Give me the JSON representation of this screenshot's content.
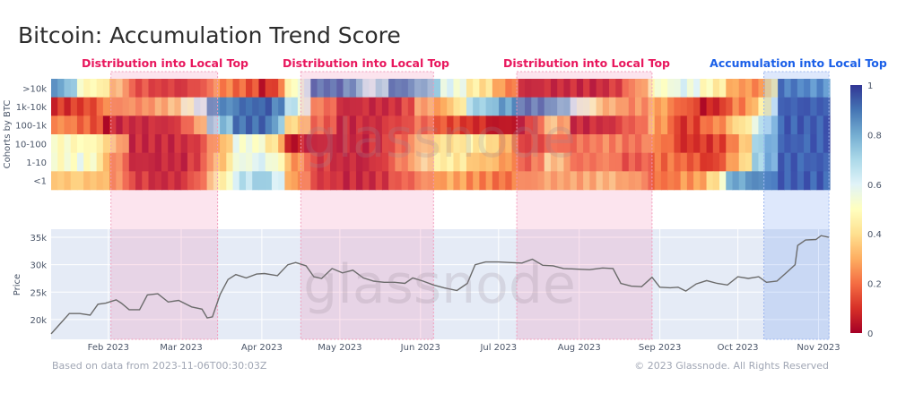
{
  "title": "Bitcoin: Accumulation Trend Score",
  "watermark": "glassnode",
  "footer_left": "Based on data from 2023-11-06T00:30:03Z",
  "footer_right": "© 2023 Glassnode. All Rights Reserved",
  "colors": {
    "distribution": "#e8175d",
    "accumulation": "#1a5fe8",
    "price_line": "#6b6b6b"
  },
  "chart_data": [
    {
      "type": "heatmap",
      "title": "Accumulation Trend Score",
      "ylabel": "Cohorts by BTC",
      "rows": [
        ">10k",
        "1k-10k",
        "100-1k",
        "10-100",
        "1-10",
        "<1"
      ],
      "x_start": "2023-01-10",
      "x_end": "2023-11-05",
      "colorbar": {
        "min": 0,
        "max": 1,
        "ticks": [
          "0",
          "0.2",
          "0.4",
          "0.6",
          "0.8",
          "1"
        ],
        "colorscale": "RdYlBu"
      },
      "values": [
        [
          0.85,
          0.5,
          0.4,
          0.15,
          0.1,
          0.1,
          0.25,
          0.2,
          0.05,
          0.45,
          0.9,
          0.9,
          0.6,
          0.9,
          0.8,
          0.6,
          0.45,
          0.3,
          0.05,
          0.05,
          0.05,
          0.05,
          0.2,
          0.5,
          0.6,
          0.5,
          0.3,
          0.2,
          0.9,
          0.85
        ],
        [
          0.1,
          0.12,
          0.25,
          0.25,
          0.3,
          0.5,
          0.85,
          0.9,
          0.95,
          0.7,
          0.25,
          0.05,
          0.05,
          0.05,
          0.3,
          0.3,
          0.7,
          0.8,
          0.9,
          0.85,
          0.6,
          0.35,
          0.25,
          0.3,
          0.2,
          0.05,
          0.2,
          0.35,
          0.95,
          0.95
        ],
        [
          0.25,
          0.2,
          0.05,
          0.05,
          0.05,
          0.15,
          0.7,
          0.9,
          0.95,
          0.4,
          0.2,
          0.05,
          0.05,
          0.1,
          0.2,
          0.15,
          0.1,
          0.05,
          0.05,
          0.4,
          0.05,
          0.05,
          0.15,
          0.3,
          0.1,
          0.2,
          0.35,
          0.6,
          0.95,
          0.95
        ],
        [
          0.5,
          0.5,
          0.4,
          0.05,
          0.05,
          0.05,
          0.25,
          0.55,
          0.5,
          0.05,
          0.05,
          0.05,
          0.05,
          0.15,
          0.35,
          0.4,
          0.45,
          0.35,
          0.1,
          0.2,
          0.2,
          0.25,
          0.2,
          0.25,
          0.1,
          0.1,
          0.2,
          0.7,
          0.95,
          0.95
        ],
        [
          0.5,
          0.55,
          0.3,
          0.05,
          0.05,
          0.05,
          0.3,
          0.55,
          0.6,
          0.3,
          0.1,
          0.05,
          0.05,
          0.2,
          0.4,
          0.45,
          0.35,
          0.3,
          0.15,
          0.4,
          0.2,
          0.25,
          0.15,
          0.2,
          0.2,
          0.1,
          0.25,
          0.7,
          0.95,
          0.95
        ],
        [
          0.35,
          0.35,
          0.3,
          0.1,
          0.05,
          0.1,
          0.4,
          0.65,
          0.75,
          0.3,
          0.1,
          0.05,
          0.05,
          0.15,
          0.25,
          0.3,
          0.25,
          0.2,
          0.25,
          0.3,
          0.3,
          0.35,
          0.3,
          0.2,
          0.25,
          0.3,
          0.8,
          0.85,
          0.95,
          0.95
        ]
      ]
    },
    {
      "type": "line",
      "ylabel": "Price",
      "ylim": [
        16400,
        36470
      ],
      "yticks": [
        {
          "v": 20000,
          "label": "20k"
        },
        {
          "v": 25000,
          "label": "25k"
        },
        {
          "v": 30000,
          "label": "30k"
        },
        {
          "v": 35000,
          "label": "35k"
        }
      ],
      "xticks": [
        {
          "date": "2023-02-01",
          "label": "Feb 2023"
        },
        {
          "date": "2023-03-01",
          "label": "Mar 2023"
        },
        {
          "date": "2023-04-01",
          "label": "Apr 2023"
        },
        {
          "date": "2023-05-01",
          "label": "May 2023"
        },
        {
          "date": "2023-06-01",
          "label": "Jun 2023"
        },
        {
          "date": "2023-07-01",
          "label": "Jul 2023"
        },
        {
          "date": "2023-08-01",
          "label": "Aug 2023"
        },
        {
          "date": "2023-09-01",
          "label": "Sep 2023"
        },
        {
          "date": "2023-10-01",
          "label": "Oct 2023"
        },
        {
          "date": "2023-11-01",
          "label": "Nov 2023"
        }
      ],
      "series": [
        {
          "name": "Price",
          "points": [
            [
              "2023-01-10",
              17400
            ],
            [
              "2023-01-13",
              19000
            ],
            [
              "2023-01-17",
              21100
            ],
            [
              "2023-01-21",
              21100
            ],
            [
              "2023-01-25",
              20800
            ],
            [
              "2023-01-28",
              22800
            ],
            [
              "2023-01-31",
              23000
            ],
            [
              "2023-02-04",
              23600
            ],
            [
              "2023-02-06",
              23000
            ],
            [
              "2023-02-09",
              21800
            ],
            [
              "2023-02-13",
              21800
            ],
            [
              "2023-02-16",
              24500
            ],
            [
              "2023-02-20",
              24700
            ],
            [
              "2023-02-24",
              23200
            ],
            [
              "2023-02-28",
              23500
            ],
            [
              "2023-03-05",
              22300
            ],
            [
              "2023-03-09",
              21900
            ],
            [
              "2023-03-11",
              20300
            ],
            [
              "2023-03-13",
              20500
            ],
            [
              "2023-03-16",
              24600
            ],
            [
              "2023-03-19",
              27300
            ],
            [
              "2023-03-22",
              28200
            ],
            [
              "2023-03-26",
              27600
            ],
            [
              "2023-03-30",
              28300
            ],
            [
              "2023-04-02",
              28400
            ],
            [
              "2023-04-07",
              28000
            ],
            [
              "2023-04-11",
              30000
            ],
            [
              "2023-04-14",
              30400
            ],
            [
              "2023-04-18",
              29800
            ],
            [
              "2023-04-21",
              27800
            ],
            [
              "2023-04-24",
              27500
            ],
            [
              "2023-04-28",
              29300
            ],
            [
              "2023-05-02",
              28500
            ],
            [
              "2023-05-06",
              29000
            ],
            [
              "2023-05-10",
              27600
            ],
            [
              "2023-05-14",
              27000
            ],
            [
              "2023-05-18",
              26800
            ],
            [
              "2023-05-22",
              26800
            ],
            [
              "2023-05-26",
              26600
            ],
            [
              "2023-05-29",
              27600
            ],
            [
              "2023-06-02",
              27000
            ],
            [
              "2023-06-06",
              26300
            ],
            [
              "2023-06-10",
              25800
            ],
            [
              "2023-06-15",
              25300
            ],
            [
              "2023-06-19",
              26600
            ],
            [
              "2023-06-22",
              30000
            ],
            [
              "2023-06-26",
              30500
            ],
            [
              "2023-07-01",
              30500
            ],
            [
              "2023-07-05",
              30400
            ],
            [
              "2023-07-10",
              30300
            ],
            [
              "2023-07-14",
              31000
            ],
            [
              "2023-07-18",
              29900
            ],
            [
              "2023-07-22",
              29800
            ],
            [
              "2023-07-26",
              29300
            ],
            [
              "2023-07-31",
              29200
            ],
            [
              "2023-08-05",
              29100
            ],
            [
              "2023-08-10",
              29400
            ],
            [
              "2023-08-14",
              29300
            ],
            [
              "2023-08-17",
              26600
            ],
            [
              "2023-08-21",
              26100
            ],
            [
              "2023-08-25",
              26000
            ],
            [
              "2023-08-29",
              27700
            ],
            [
              "2023-09-01",
              25900
            ],
            [
              "2023-09-05",
              25800
            ],
            [
              "2023-09-08",
              25900
            ],
            [
              "2023-09-11",
              25200
            ],
            [
              "2023-09-15",
              26500
            ],
            [
              "2023-09-19",
              27100
            ],
            [
              "2023-09-23",
              26600
            ],
            [
              "2023-09-27",
              26300
            ],
            [
              "2023-10-01",
              27800
            ],
            [
              "2023-10-05",
              27500
            ],
            [
              "2023-10-09",
              27800
            ],
            [
              "2023-10-12",
              26800
            ],
            [
              "2023-10-16",
              27000
            ],
            [
              "2023-10-20",
              28700
            ],
            [
              "2023-10-23",
              30000
            ],
            [
              "2023-10-24",
              33500
            ],
            [
              "2023-10-27",
              34500
            ],
            [
              "2023-10-31",
              34600
            ],
            [
              "2023-11-02",
              35300
            ],
            [
              "2023-11-04",
              35100
            ],
            [
              "2023-11-05",
              35000
            ]
          ]
        }
      ]
    }
  ],
  "regions": [
    {
      "label": "Distribution into Local Top",
      "start": "2023-02-02",
      "end": "2023-03-15",
      "kind": "distribution"
    },
    {
      "label": "Distribution into Local Top",
      "start": "2023-04-16",
      "end": "2023-06-06",
      "kind": "distribution"
    },
    {
      "label": "Distribution into Local Top",
      "start": "2023-07-08",
      "end": "2023-08-29",
      "kind": "distribution"
    },
    {
      "label": "Accumulation into Local Top",
      "start": "2023-10-11",
      "end": "2023-11-05",
      "kind": "accumulation"
    }
  ]
}
